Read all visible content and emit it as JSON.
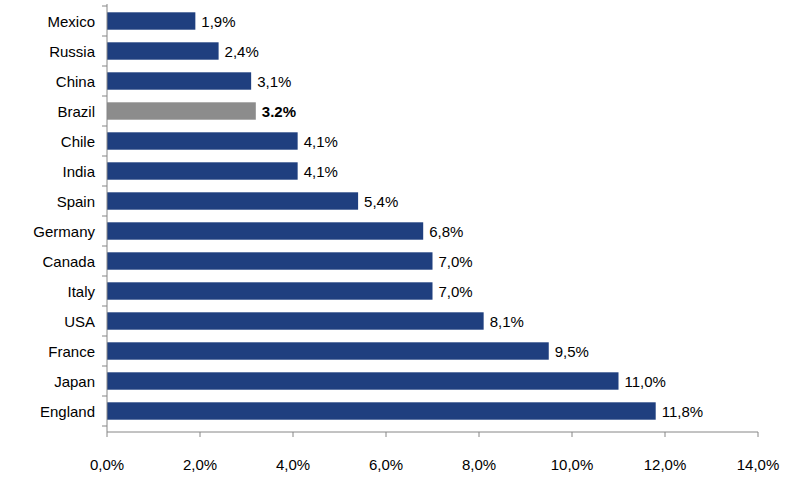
{
  "chart_data": {
    "type": "bar",
    "orientation": "horizontal",
    "categories": [
      "Mexico",
      "Russia",
      "China",
      "Brazil",
      "Chile",
      "India",
      "Spain",
      "Germany",
      "Canada",
      "Italy",
      "USA",
      "France",
      "Japan",
      "England"
    ],
    "values": [
      1.9,
      2.4,
      3.1,
      3.2,
      4.1,
      4.1,
      5.4,
      6.8,
      7.0,
      7.0,
      8.1,
      9.5,
      11.0,
      11.8
    ],
    "value_labels": [
      "1,9%",
      "2,4%",
      "3,1%",
      "3.2%",
      "4,1%",
      "4,1%",
      "5,4%",
      "6,8%",
      "7,0%",
      "7,0%",
      "8,1%",
      "9,5%",
      "11,0%",
      "11,8%"
    ],
    "colors": [
      "#1f3f7f",
      "#1f3f7f",
      "#1f3f7f",
      "#8c8c8c",
      "#1f3f7f",
      "#1f3f7f",
      "#1f3f7f",
      "#1f3f7f",
      "#1f3f7f",
      "#1f3f7f",
      "#1f3f7f",
      "#1f3f7f",
      "#1f3f7f",
      "#1f3f7f"
    ],
    "xlim": [
      0,
      14
    ],
    "xticks": [
      {
        "value": 0,
        "label": "0,0%"
      },
      {
        "value": 2,
        "label": "2,0%"
      },
      {
        "value": 4,
        "label": "4,0%"
      },
      {
        "value": 6,
        "label": "6,0%"
      },
      {
        "value": 8,
        "label": "8,0%"
      },
      {
        "value": 10,
        "label": "10,0%"
      },
      {
        "value": 12,
        "label": "12,0%"
      },
      {
        "value": 14,
        "label": "14,0%"
      }
    ],
    "grid": false,
    "data_labels": true
  }
}
